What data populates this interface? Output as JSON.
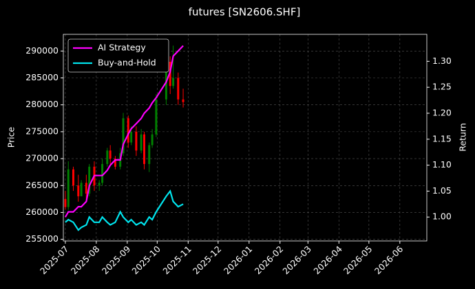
{
  "chart_data": {
    "type": "candlestick",
    "title": "futures [SN2606.SHF]",
    "ylabel": "Price",
    "y2label": "Return",
    "x": [
      "2025-07-01",
      "2025-07-04",
      "2025-07-09",
      "2025-07-14",
      "2025-07-17",
      "2025-07-22",
      "2025-07-25",
      "2025-07-30",
      "2025-08-04",
      "2025-08-07",
      "2025-08-12",
      "2025-08-15",
      "2025-08-20",
      "2025-08-25",
      "2025-08-28",
      "2025-09-02",
      "2025-09-05",
      "2025-09-10",
      "2025-09-15",
      "2025-09-18",
      "2025-09-23",
      "2025-09-26",
      "2025-09-30",
      "2025-10-10",
      "2025-10-14",
      "2025-10-17",
      "2025-10-22",
      "2025-10-27"
    ],
    "open": [
      262500,
      261000,
      268000,
      265000,
      263000,
      265500,
      263500,
      268500,
      265000,
      265500,
      269000,
      271500,
      270000,
      268500,
      271000,
      277500,
      273000,
      275000,
      271500,
      274500,
      269000,
      272500,
      274500,
      281000,
      288000,
      283500,
      285000,
      281000
    ],
    "high": [
      264000,
      269500,
      268500,
      267000,
      266000,
      267000,
      269000,
      269500,
      266000,
      270000,
      272000,
      272500,
      270500,
      272000,
      278500,
      278000,
      276000,
      276000,
      275500,
      275000,
      273000,
      275500,
      282000,
      290500,
      289000,
      291000,
      286000,
      283000
    ],
    "low": [
      260500,
      260500,
      264000,
      262000,
      263000,
      262500,
      263000,
      264000,
      264000,
      265000,
      268500,
      269000,
      268000,
      268000,
      270500,
      272000,
      272500,
      270500,
      271000,
      268000,
      267500,
      272000,
      274000,
      280000,
      282000,
      283000,
      280000,
      279500
    ],
    "close": [
      261000,
      268000,
      265000,
      263000,
      265500,
      263500,
      268500,
      265000,
      265500,
      269000,
      271500,
      270000,
      268500,
      271000,
      277500,
      273000,
      275000,
      271500,
      274500,
      269000,
      272500,
      274500,
      281000,
      288000,
      283500,
      285000,
      281000,
      280500
    ],
    "up_color": "#008000",
    "down_color": "#ff0000",
    "series": [
      {
        "name": "AI Strategy",
        "color": "#ff00ff",
        "axis": "y2",
        "values": [
          1.0,
          1.01,
          1.01,
          1.02,
          1.02,
          1.03,
          1.06,
          1.08,
          1.08,
          1.08,
          1.09,
          1.1,
          1.11,
          1.11,
          1.14,
          1.16,
          1.17,
          1.18,
          1.19,
          1.2,
          1.21,
          1.22,
          1.23,
          1.26,
          1.28,
          1.31,
          1.32,
          1.33
        ]
      },
      {
        "name": "Buy-and-Hold",
        "color": "#00e5ee",
        "axis": "y2",
        "values": [
          0.99,
          0.995,
          0.99,
          0.975,
          0.98,
          0.985,
          1.0,
          0.99,
          0.99,
          1.0,
          0.99,
          0.985,
          0.99,
          1.01,
          1.0,
          0.99,
          0.995,
          0.985,
          0.99,
          0.985,
          1.0,
          0.995,
          1.01,
          1.04,
          1.05,
          1.03,
          1.02,
          1.025
        ]
      }
    ],
    "xlim": [
      "2025-06-29",
      "2026-06-28"
    ],
    "xticks": [
      {
        "value": "2025-07-01",
        "label": "2025-07"
      },
      {
        "value": "2025-08-01",
        "label": "2025-08"
      },
      {
        "value": "2025-09-01",
        "label": "2025-09"
      },
      {
        "value": "2025-10-01",
        "label": "2025-10"
      },
      {
        "value": "2025-11-01",
        "label": "2025-11"
      },
      {
        "value": "2025-12-01",
        "label": "2025-12"
      },
      {
        "value": "2026-01-01",
        "label": "2026-01"
      },
      {
        "value": "2026-02-01",
        "label": "2026-02"
      },
      {
        "value": "2026-03-01",
        "label": "2026-03"
      },
      {
        "value": "2026-04-01",
        "label": "2026-04"
      },
      {
        "value": "2026-05-01",
        "label": "2026-05"
      },
      {
        "value": "2026-06-01",
        "label": "2026-06"
      }
    ],
    "ylim": [
      254700,
      293100
    ],
    "yticks": [
      255000,
      260000,
      265000,
      270000,
      275000,
      280000,
      285000,
      290000
    ],
    "y2lim": [
      0.954,
      1.352
    ],
    "y2ticks": [
      {
        "value": 1,
        "label": "1.00"
      },
      1.05,
      {
        "value": 1.1,
        "label": "1.10"
      },
      1.15,
      {
        "value": 1.2,
        "label": "1.20"
      },
      1.25,
      {
        "value": 1.3,
        "label": "1.30"
      }
    ],
    "grid": true,
    "legend": "upper left"
  }
}
